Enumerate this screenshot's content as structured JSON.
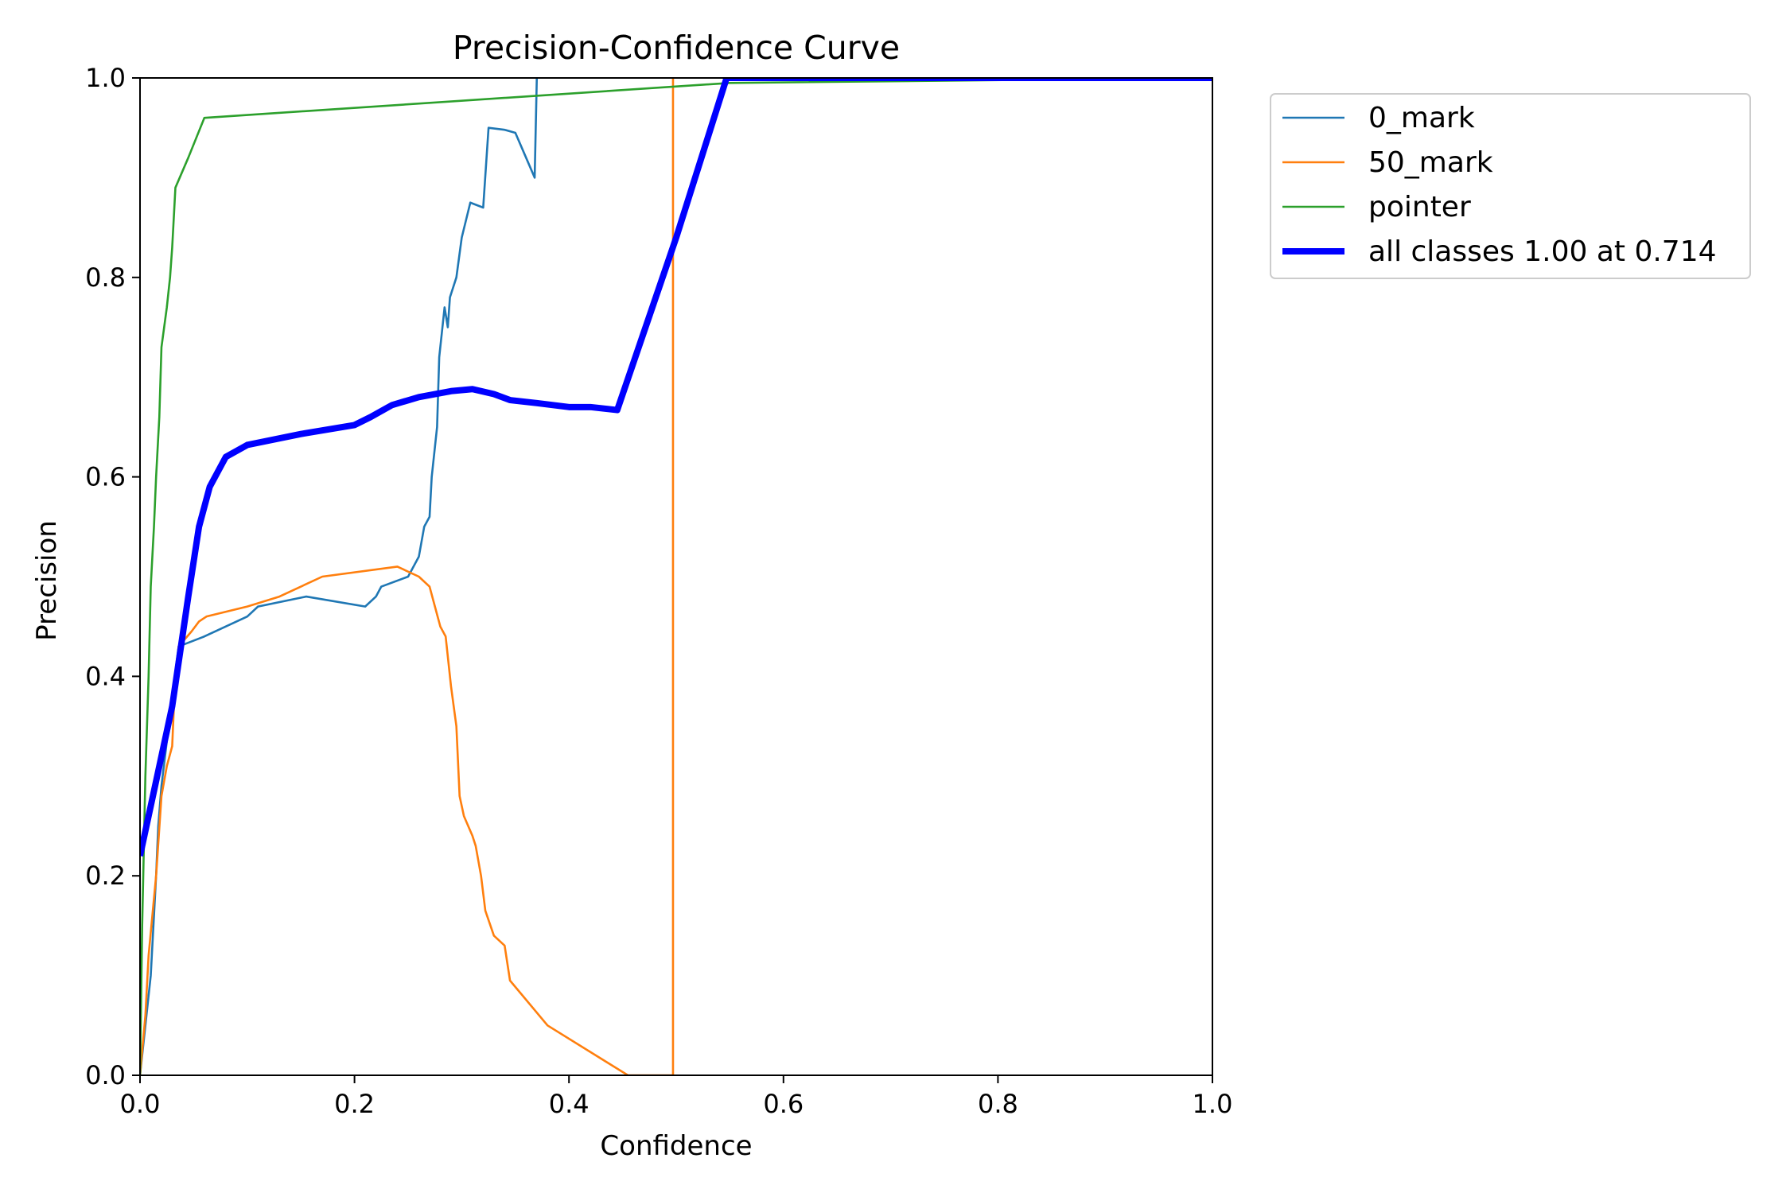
{
  "chart_data": {
    "type": "line",
    "title": "Precision-Confidence Curve",
    "xlabel": "Confidence",
    "ylabel": "Precision",
    "xlim": [
      0,
      1
    ],
    "ylim": [
      0,
      1
    ],
    "grid": false,
    "legend_placement": "outside-upper-right",
    "xticks": [
      "0.0",
      "0.2",
      "0.4",
      "0.6",
      "0.8",
      "1.0"
    ],
    "yticks": [
      "0.0",
      "0.2",
      "0.4",
      "0.6",
      "0.8",
      "1.0"
    ],
    "series": [
      {
        "name": "0_mark",
        "color": "#1f77b4",
        "thick": false,
        "points": [
          [
            0.0,
            0.0
          ],
          [
            0.005,
            0.05
          ],
          [
            0.01,
            0.1
          ],
          [
            0.012,
            0.14
          ],
          [
            0.015,
            0.2
          ],
          [
            0.017,
            0.25
          ],
          [
            0.02,
            0.29
          ],
          [
            0.03,
            0.38
          ],
          [
            0.036,
            0.43
          ],
          [
            0.06,
            0.44
          ],
          [
            0.1,
            0.46
          ],
          [
            0.11,
            0.47
          ],
          [
            0.155,
            0.48
          ],
          [
            0.21,
            0.47
          ],
          [
            0.22,
            0.48
          ],
          [
            0.225,
            0.49
          ],
          [
            0.25,
            0.5
          ],
          [
            0.26,
            0.52
          ],
          [
            0.265,
            0.55
          ],
          [
            0.27,
            0.56
          ],
          [
            0.272,
            0.6
          ],
          [
            0.275,
            0.63
          ],
          [
            0.277,
            0.65
          ],
          [
            0.279,
            0.72
          ],
          [
            0.282,
            0.75
          ],
          [
            0.284,
            0.77
          ],
          [
            0.287,
            0.75
          ],
          [
            0.289,
            0.78
          ],
          [
            0.295,
            0.8
          ],
          [
            0.3,
            0.84
          ],
          [
            0.308,
            0.875
          ],
          [
            0.32,
            0.87
          ],
          [
            0.325,
            0.95
          ],
          [
            0.34,
            0.948
          ],
          [
            0.35,
            0.945
          ],
          [
            0.36,
            0.92
          ],
          [
            0.368,
            0.9
          ],
          [
            0.37,
            1.0
          ]
        ]
      },
      {
        "name": "50_mark",
        "color": "#ff7f0e",
        "thick": false,
        "points": [
          [
            0.0,
            0.0
          ],
          [
            0.005,
            0.06
          ],
          [
            0.008,
            0.12
          ],
          [
            0.015,
            0.2
          ],
          [
            0.02,
            0.28
          ],
          [
            0.025,
            0.31
          ],
          [
            0.03,
            0.33
          ],
          [
            0.032,
            0.38
          ],
          [
            0.036,
            0.43
          ],
          [
            0.048,
            0.445
          ],
          [
            0.055,
            0.455
          ],
          [
            0.062,
            0.46
          ],
          [
            0.1,
            0.47
          ],
          [
            0.13,
            0.48
          ],
          [
            0.17,
            0.5
          ],
          [
            0.24,
            0.51
          ],
          [
            0.26,
            0.5
          ],
          [
            0.27,
            0.49
          ],
          [
            0.275,
            0.47
          ],
          [
            0.28,
            0.45
          ],
          [
            0.285,
            0.44
          ],
          [
            0.29,
            0.39
          ],
          [
            0.295,
            0.35
          ],
          [
            0.298,
            0.28
          ],
          [
            0.302,
            0.26
          ],
          [
            0.31,
            0.24
          ],
          [
            0.313,
            0.23
          ],
          [
            0.318,
            0.2
          ],
          [
            0.322,
            0.165
          ],
          [
            0.33,
            0.14
          ],
          [
            0.34,
            0.13
          ],
          [
            0.345,
            0.095
          ],
          [
            0.38,
            0.05
          ],
          [
            0.455,
            0.0
          ],
          [
            0.497,
            0.0
          ],
          [
            0.497,
            1.0
          ]
        ]
      },
      {
        "name": "pointer",
        "color": "#2ca02c",
        "thick": false,
        "points": [
          [
            0.0,
            0.0
          ],
          [
            0.002,
            0.15
          ],
          [
            0.005,
            0.3
          ],
          [
            0.008,
            0.4
          ],
          [
            0.01,
            0.49
          ],
          [
            0.013,
            0.55
          ],
          [
            0.015,
            0.6
          ],
          [
            0.018,
            0.66
          ],
          [
            0.02,
            0.73
          ],
          [
            0.025,
            0.77
          ],
          [
            0.028,
            0.8
          ],
          [
            0.03,
            0.83
          ],
          [
            0.033,
            0.89
          ],
          [
            0.045,
            0.92
          ],
          [
            0.06,
            0.96
          ],
          [
            0.55,
            0.995
          ],
          [
            1.0,
            1.0
          ]
        ]
      },
      {
        "name": "all classes 1.00 at 0.714",
        "color": "#0000ff",
        "thick": true,
        "points": [
          [
            0.0,
            0.22
          ],
          [
            0.01,
            0.27
          ],
          [
            0.03,
            0.37
          ],
          [
            0.045,
            0.48
          ],
          [
            0.055,
            0.55
          ],
          [
            0.065,
            0.59
          ],
          [
            0.08,
            0.62
          ],
          [
            0.1,
            0.632
          ],
          [
            0.15,
            0.643
          ],
          [
            0.2,
            0.652
          ],
          [
            0.215,
            0.66
          ],
          [
            0.235,
            0.672
          ],
          [
            0.26,
            0.68
          ],
          [
            0.29,
            0.686
          ],
          [
            0.31,
            0.688
          ],
          [
            0.33,
            0.683
          ],
          [
            0.345,
            0.677
          ],
          [
            0.37,
            0.674
          ],
          [
            0.4,
            0.67
          ],
          [
            0.42,
            0.67
          ],
          [
            0.445,
            0.667
          ],
          [
            0.5,
            0.84
          ],
          [
            0.547,
            1.0
          ],
          [
            0.6,
            1.0
          ],
          [
            1.0,
            1.0
          ]
        ]
      }
    ]
  }
}
